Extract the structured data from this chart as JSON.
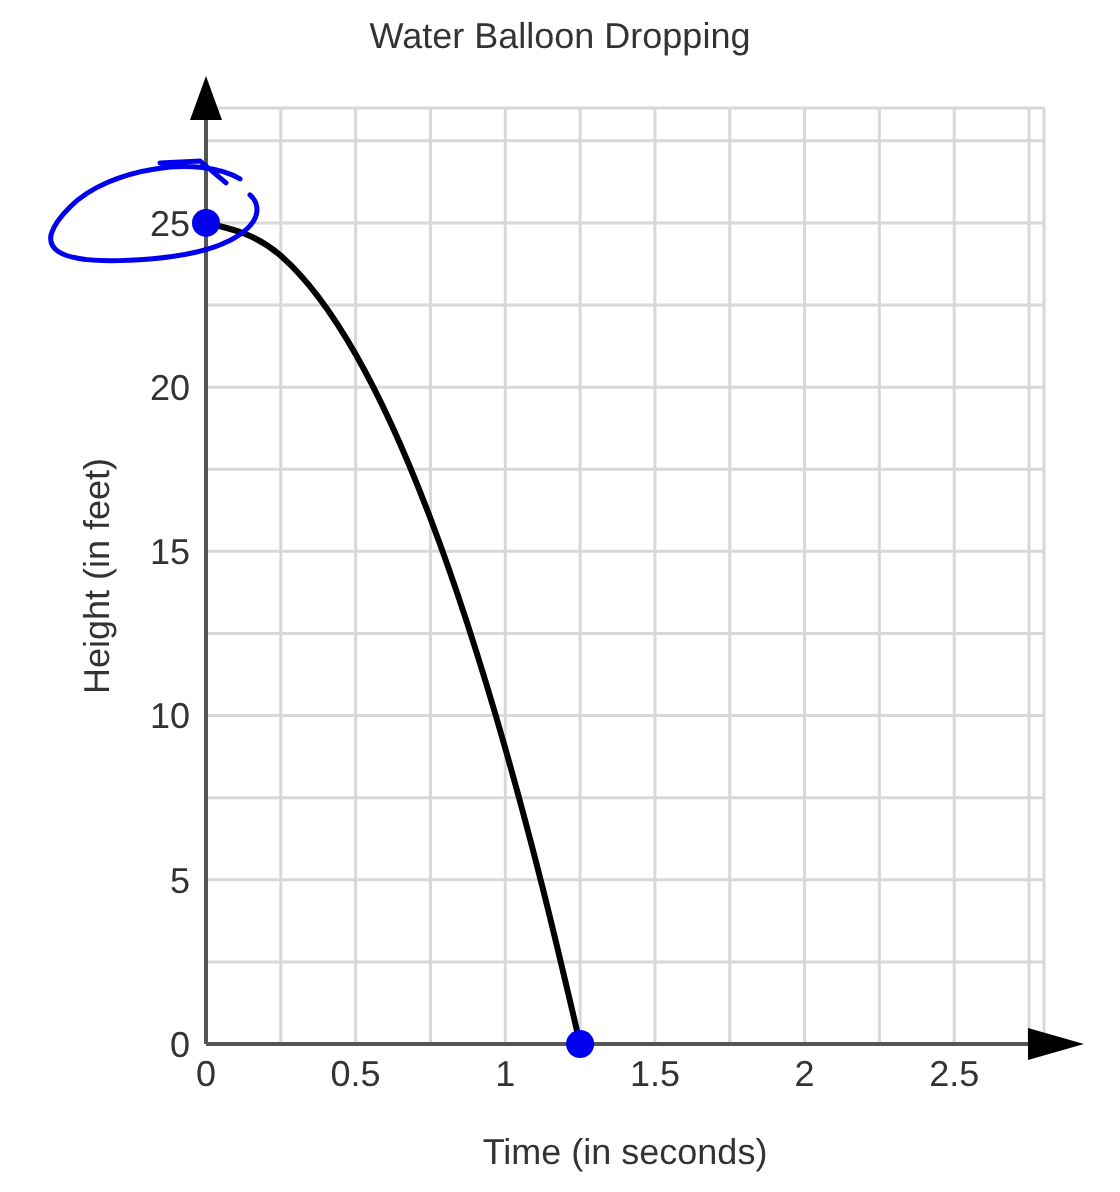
{
  "chart_data": {
    "type": "line",
    "title": "Water Balloon Dropping",
    "xlabel": "Time (in seconds)",
    "ylabel": "Height (in feet)",
    "series": [
      {
        "type": "line",
        "color": "#000000",
        "marker": "none",
        "x": [
          0,
          0.25,
          0.5,
          0.75,
          1,
          1.125,
          1.25
        ],
        "values": [
          25,
          24,
          21,
          16,
          9,
          4.75,
          0
        ]
      },
      {
        "type": "scatter",
        "color": "#0000ee",
        "marker": "circle",
        "x": [
          0,
          1.25
        ],
        "values": [
          25,
          0
        ]
      }
    ],
    "xlim": [
      0,
      2.8
    ],
    "ylim": [
      0,
      28.5
    ],
    "xticks": [
      0,
      {
        "value": 0.25,
        "label": null
      },
      0.5,
      {
        "value": 0.75,
        "label": null
      },
      1,
      {
        "value": 1.25,
        "label": null
      },
      1.5,
      {
        "value": 1.75,
        "label": null
      },
      2,
      {
        "value": 2.25,
        "label": null
      },
      2.5,
      {
        "value": 2.75,
        "label": null
      }
    ],
    "yticks": [
      0,
      {
        "value": 2.5,
        "label": null
      },
      5,
      {
        "value": 7.5,
        "label": null
      },
      10,
      {
        "value": 12.5,
        "label": null
      },
      15,
      {
        "value": 17.5,
        "label": null
      },
      20,
      {
        "value": 22.5,
        "label": null
      },
      25,
      {
        "value": 27.5,
        "label": null
      }
    ],
    "grid": true,
    "legend": false
  }
}
